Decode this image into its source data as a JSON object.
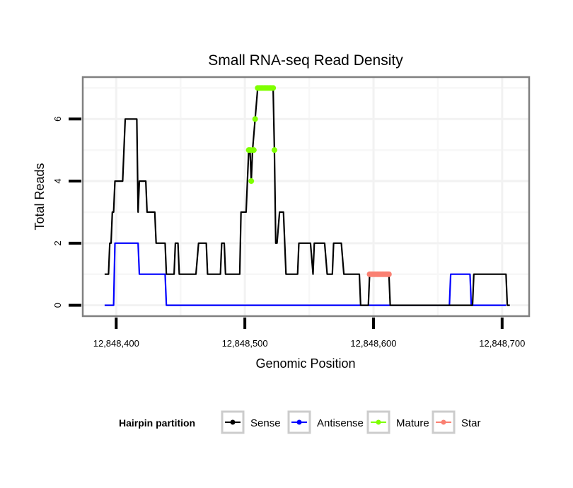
{
  "chart_data": {
    "type": "line",
    "title": "Small RNA-seq Read Density",
    "xlabel": "Genomic Position",
    "ylabel": "Total Reads",
    "xlim": [
      12848374,
      12848721
    ],
    "ylim": [
      -0.35,
      7.35
    ],
    "x_ticks": [
      12848400,
      12848500,
      12848600,
      12848700
    ],
    "x_tick_labels": [
      "12,848,400",
      "12,848,500",
      "12,848,600",
      "12,848,700"
    ],
    "y_ticks": [
      0,
      2,
      4,
      6
    ],
    "y_tick_labels": [
      "0",
      "2",
      "4",
      "6"
    ],
    "minor_y": [
      1,
      3,
      5,
      7
    ],
    "minor_x": [
      12848450,
      12848550,
      12848650
    ],
    "grid": true,
    "legend": {
      "title": "Hairpin partition",
      "placement": "bottom",
      "entries": [
        {
          "label": "Sense",
          "color": "#000000"
        },
        {
          "label": "Antisense",
          "color": "#0000ff"
        },
        {
          "label": "Mature",
          "color": "#7fff00"
        },
        {
          "label": "Star",
          "color": "#fa8072"
        }
      ]
    },
    "series": [
      {
        "name": "Sense",
        "kind": "line",
        "color": "#000000",
        "points": [
          [
            12848391,
            1
          ],
          [
            12848394,
            1
          ],
          [
            12848395,
            2
          ],
          [
            12848396,
            2
          ],
          [
            12848397,
            3
          ],
          [
            12848398,
            3
          ],
          [
            12848399,
            4
          ],
          [
            12848405,
            4
          ],
          [
            12848407,
            6
          ],
          [
            12848416,
            6
          ],
          [
            12848417,
            3
          ],
          [
            12848418,
            4
          ],
          [
            12848423,
            4
          ],
          [
            12848424,
            3
          ],
          [
            12848430,
            3
          ],
          [
            12848431,
            2
          ],
          [
            12848438,
            2
          ],
          [
            12848439,
            1
          ],
          [
            12848445,
            1
          ],
          [
            12848446,
            2
          ],
          [
            12848448,
            2
          ],
          [
            12848449,
            1
          ],
          [
            12848462,
            1
          ],
          [
            12848464,
            2
          ],
          [
            12848470,
            2
          ],
          [
            12848471,
            1
          ],
          [
            12848481,
            1
          ],
          [
            12848482,
            2
          ],
          [
            12848484,
            2
          ],
          [
            12848485,
            1
          ],
          [
            12848496,
            1
          ],
          [
            12848497,
            3
          ],
          [
            12848501,
            3
          ],
          [
            12848503,
            5
          ],
          [
            12848504,
            5
          ],
          [
            12848505,
            4
          ],
          [
            12848506,
            5
          ],
          [
            12848510,
            7
          ],
          [
            12848522,
            7
          ],
          [
            12848523,
            5
          ],
          [
            12848524,
            2
          ],
          [
            12848525,
            2
          ],
          [
            12848527,
            3
          ],
          [
            12848530,
            3
          ],
          [
            12848531,
            2
          ],
          [
            12848532,
            1
          ],
          [
            12848541,
            1
          ],
          [
            12848542,
            2
          ],
          [
            12848551,
            2
          ],
          [
            12848553,
            1
          ],
          [
            12848554,
            2
          ],
          [
            12848562,
            2
          ],
          [
            12848564,
            1
          ],
          [
            12848568,
            1
          ],
          [
            12848569,
            2
          ],
          [
            12848575,
            2
          ],
          [
            12848577,
            1
          ],
          [
            12848589,
            1
          ],
          [
            12848590,
            0
          ],
          [
            12848596,
            0
          ],
          [
            12848597,
            1
          ],
          [
            12848612,
            1
          ],
          [
            12848613,
            0
          ],
          [
            12848677,
            0
          ],
          [
            12848678,
            1
          ],
          [
            12848703,
            1
          ],
          [
            12848704,
            0
          ],
          [
            12848706,
            0
          ]
        ]
      },
      {
        "name": "Antisense",
        "kind": "line",
        "color": "#0000ff",
        "points": [
          [
            12848391,
            0
          ],
          [
            12848398,
            0
          ],
          [
            12848399,
            2
          ],
          [
            12848417,
            2
          ],
          [
            12848418,
            1
          ],
          [
            12848438,
            1
          ],
          [
            12848439,
            0
          ],
          [
            12848659,
            0
          ],
          [
            12848660,
            1
          ],
          [
            12848675,
            1
          ],
          [
            12848676,
            0
          ],
          [
            12848703,
            0
          ]
        ]
      },
      {
        "name": "Mature",
        "kind": "points",
        "color": "#7fff00",
        "points": [
          [
            12848503,
            5
          ],
          [
            12848504,
            5
          ],
          [
            12848505,
            4
          ],
          [
            12848506,
            5
          ],
          [
            12848507,
            5
          ],
          [
            12848508,
            6
          ],
          [
            12848510,
            7
          ],
          [
            12848511,
            7
          ],
          [
            12848512,
            7
          ],
          [
            12848513,
            7
          ],
          [
            12848514,
            7
          ],
          [
            12848515,
            7
          ],
          [
            12848516,
            7
          ],
          [
            12848517,
            7
          ],
          [
            12848518,
            7
          ],
          [
            12848519,
            7
          ],
          [
            12848520,
            7
          ],
          [
            12848521,
            7
          ],
          [
            12848522,
            7
          ],
          [
            12848523,
            5
          ]
        ]
      },
      {
        "name": "Star",
        "kind": "points",
        "color": "#fa8072",
        "points": [
          [
            12848597,
            1
          ],
          [
            12848598,
            1
          ],
          [
            12848599,
            1
          ],
          [
            12848600,
            1
          ],
          [
            12848601,
            1
          ],
          [
            12848602,
            1
          ],
          [
            12848603,
            1
          ],
          [
            12848604,
            1
          ],
          [
            12848605,
            1
          ],
          [
            12848606,
            1
          ],
          [
            12848607,
            1
          ],
          [
            12848608,
            1
          ],
          [
            12848609,
            1
          ],
          [
            12848610,
            1
          ],
          [
            12848611,
            1
          ],
          [
            12848612,
            1
          ]
        ]
      }
    ]
  }
}
